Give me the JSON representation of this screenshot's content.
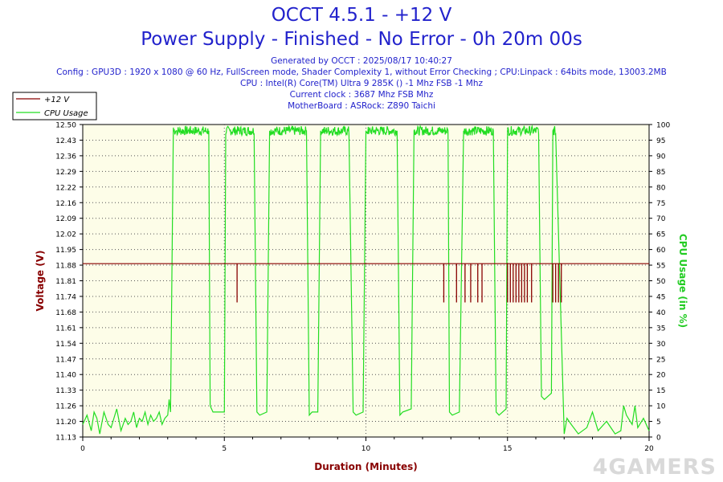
{
  "header": {
    "title": "OCCT 4.5.1 - +12 V",
    "subtitle": "Power Supply - Finished - No Error - 0h 20m 00s",
    "info": [
      "Generated by OCCT : 2025/08/17 10:40:27",
      "Config : GPU3D : 1920 x 1080 @ 60 Hz, FullScreen mode, Shader Complexity 1, without Error Checking ; CPU:Linpack : 64bits mode, 13003.2MB",
      "CPU : Intel(R) Core(TM) Ultra 9 285K () -1 Mhz FSB -1 Mhz",
      "Current clock : 3687 Mhz FSB  Mhz",
      "MotherBoard : ASRock: Z890 Taichi"
    ]
  },
  "watermark": "4GAMERS",
  "colors": {
    "voltage": "#880000",
    "cpu": "#22dd22",
    "text": "#2222cc",
    "plot_bg": "#fdfde8"
  },
  "chart_data": {
    "type": "line",
    "xlabel": "Duration (Minutes)",
    "ylabel_left": "Voltage (V)",
    "ylabel_right": "CPU Usage (in %)",
    "xlim": [
      0,
      20
    ],
    "ylim_left": [
      11.13,
      12.5
    ],
    "ylim_right": [
      0,
      100
    ],
    "x_ticks": [
      "0",
      "5",
      "10",
      "15",
      "20"
    ],
    "y_ticks_left": [
      "11.13",
      "11.20",
      "11.26",
      "11.33",
      "11.40",
      "11.47",
      "11.54",
      "11.61",
      "11.68",
      "11.74",
      "11.81",
      "11.88",
      "11.95",
      "12.02",
      "12.09",
      "12.16",
      "12.22",
      "12.29",
      "12.36",
      "12.43",
      "12.50"
    ],
    "y_ticks_right": [
      "0",
      "5",
      "10",
      "15",
      "20",
      "25",
      "30",
      "35",
      "40",
      "45",
      "50",
      "55",
      "60",
      "65",
      "70",
      "75",
      "80",
      "85",
      "90",
      "95",
      "100"
    ],
    "legend": {
      "placement": "top-left",
      "entries": [
        "+12 V",
        "CPU Usage"
      ]
    },
    "grid": true,
    "series": [
      {
        "name": "+12 V",
        "axis": "left",
        "baseline": 11.89,
        "dips": [
          {
            "x": 5.45,
            "y": 11.72
          },
          {
            "x": 12.75,
            "y": 11.72
          },
          {
            "x": 13.2,
            "y": 11.72
          },
          {
            "x": 13.5,
            "y": 11.72
          },
          {
            "x": 13.7,
            "y": 11.72
          },
          {
            "x": 13.95,
            "y": 11.72
          },
          {
            "x": 14.1,
            "y": 11.72
          },
          {
            "x": 15.0,
            "y": 11.72
          },
          {
            "x": 15.1,
            "y": 11.72
          },
          {
            "x": 15.2,
            "y": 11.72
          },
          {
            "x": 15.3,
            "y": 11.72
          },
          {
            "x": 15.4,
            "y": 11.72
          },
          {
            "x": 15.5,
            "y": 11.72
          },
          {
            "x": 15.6,
            "y": 11.72
          },
          {
            "x": 15.7,
            "y": 11.72
          },
          {
            "x": 15.85,
            "y": 11.72
          },
          {
            "x": 16.6,
            "y": 11.72
          },
          {
            "x": 16.7,
            "y": 11.72
          },
          {
            "x": 16.8,
            "y": 11.72
          },
          {
            "x": 16.9,
            "y": 11.72
          }
        ]
      },
      {
        "name": "CPU Usage",
        "axis": "right",
        "x": [
          0,
          0.15,
          0.3,
          0.4,
          0.5,
          0.6,
          0.75,
          0.9,
          1.0,
          1.2,
          1.35,
          1.5,
          1.6,
          1.7,
          1.8,
          1.9,
          2.0,
          2.1,
          2.2,
          2.3,
          2.4,
          2.5,
          2.6,
          2.7,
          2.8,
          2.9,
          3.0,
          3.05,
          3.1,
          3.2,
          3.3,
          3.35,
          4.45,
          4.5,
          4.6,
          5.0,
          5.05,
          5.2,
          6.05,
          6.15,
          6.25,
          6.5,
          6.6,
          6.75,
          7.9,
          8.0,
          8.1,
          8.3,
          8.4,
          8.55,
          9.4,
          9.55,
          9.65,
          9.9,
          10.0,
          10.1,
          11.1,
          11.2,
          11.3,
          11.6,
          11.7,
          11.8,
          12.9,
          12.95,
          13.05,
          13.3,
          13.45,
          13.55,
          14.5,
          14.6,
          14.7,
          14.95,
          15.0,
          15.1,
          16.1,
          16.2,
          16.3,
          16.55,
          16.6,
          16.7,
          17.0,
          17.1,
          17.25,
          17.5,
          17.8,
          18.0,
          18.2,
          18.5,
          18.8,
          19.0,
          19.1,
          19.2,
          19.4,
          19.5,
          19.6,
          19.8,
          20.0
        ],
        "values": [
          4,
          7,
          2,
          8,
          6,
          1,
          8,
          4,
          3,
          9,
          2,
          6,
          4,
          5,
          8,
          3,
          6,
          5,
          8,
          4,
          7,
          5,
          6,
          8,
          4,
          6,
          7,
          12,
          8,
          99,
          98,
          97,
          98,
          10,
          8,
          8,
          97,
          98,
          97,
          8,
          7,
          8,
          98,
          97,
          98,
          7,
          8,
          8,
          98,
          97,
          97,
          8,
          7,
          8,
          98,
          97,
          98,
          7,
          8,
          9,
          98,
          97,
          98,
          8,
          7,
          8,
          98,
          97,
          98,
          8,
          7,
          9,
          98,
          97,
          97,
          13,
          12,
          14,
          98,
          97,
          1,
          6,
          4,
          1,
          3,
          8,
          2,
          5,
          1,
          2,
          10,
          7,
          4,
          10,
          3,
          6,
          2
        ]
      }
    ]
  }
}
